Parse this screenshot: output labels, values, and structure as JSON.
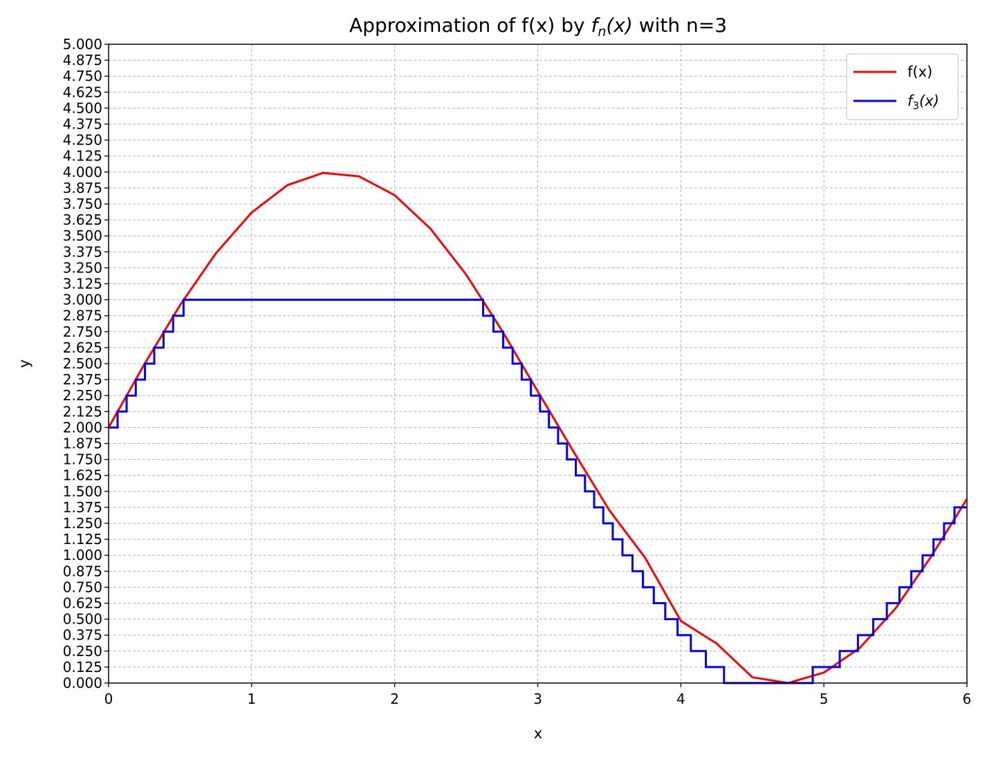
{
  "chart_data": {
    "type": "line",
    "title_prefix": "Approximation of f(x) by ",
    "title_math_f": "f",
    "title_math_sub": "n",
    "title_math_arg": "(x)",
    "title_suffix": " with n=3",
    "xlabel": "x",
    "ylabel": "y",
    "xlim": [
      0,
      6
    ],
    "ylim": [
      0,
      5
    ],
    "xticks": [
      0,
      1,
      2,
      3,
      4,
      5,
      6
    ],
    "xtick_labels": [
      "0",
      "1",
      "2",
      "3",
      "4",
      "5",
      "6"
    ],
    "yticks": [
      0,
      0.125,
      0.25,
      0.375,
      0.5,
      0.625,
      0.75,
      0.875,
      1,
      1.125,
      1.25,
      1.375,
      1.5,
      1.625,
      1.75,
      1.875,
      2,
      2.125,
      2.25,
      2.375,
      2.5,
      2.625,
      2.75,
      2.875,
      3,
      3.125,
      3.25,
      3.375,
      3.5,
      3.625,
      3.75,
      3.875,
      4,
      4.125,
      4.25,
      4.375,
      4.5,
      4.625,
      4.75,
      4.875,
      5
    ],
    "ytick_labels": [
      "0.000",
      "0.125",
      "0.250",
      "0.375",
      "0.500",
      "0.625",
      "0.750",
      "0.875",
      "1.000",
      "1.125",
      "1.250",
      "1.375",
      "1.500",
      "1.625",
      "1.750",
      "1.875",
      "2.000",
      "2.125",
      "2.250",
      "2.375",
      "2.500",
      "2.625",
      "2.750",
      "2.875",
      "3.000",
      "3.125",
      "3.250",
      "3.375",
      "3.500",
      "3.625",
      "3.750",
      "3.875",
      "4.000",
      "4.125",
      "4.250",
      "4.375",
      "4.500",
      "4.625",
      "4.750",
      "4.875",
      "5.000"
    ],
    "grid": true,
    "legend_position": "top-right",
    "series": [
      {
        "name": "f(x)",
        "color": "#ff0000",
        "x": [
          0,
          0.25,
          0.5,
          0.75,
          1,
          1.25,
          1.5,
          1.75,
          2,
          2.25,
          2.5,
          2.75,
          3,
          3.25,
          3.5,
          3.75,
          4,
          4.25,
          4.5,
          4.75,
          5,
          5.25,
          5.5,
          5.75,
          6
        ],
        "y": [
          2.0,
          2.495,
          2.959,
          3.364,
          3.683,
          3.897,
          3.993,
          3.966,
          3.818,
          3.556,
          3.196,
          2.758,
          2.282,
          1.811,
          1.352,
          0.981,
          0.486,
          0.309,
          0.045,
          0.0,
          0.082,
          0.274,
          0.583,
          0.991,
          1.441
        ]
      },
      {
        "name_math_f": "f",
        "name_math_sub": "3",
        "name_math_arg": "(x)",
        "color": "#0000ff",
        "style": "step",
        "description": "floor(8*f(x))/8 capped at 3",
        "x": [
          0,
          0.063,
          0.126,
          0.19,
          0.254,
          0.319,
          0.384,
          0.451,
          0.524,
          2.618,
          2.69,
          2.758,
          2.824,
          2.888,
          2.952,
          3.016,
          3.078,
          3.142,
          3.204,
          3.266,
          3.33,
          3.394,
          3.458,
          3.524,
          3.592,
          3.662,
          3.735,
          3.811,
          3.891,
          3.977,
          4.07,
          4.175,
          4.302,
          4.493,
          4.922,
          5.111,
          5.238,
          5.345,
          5.44,
          5.528,
          5.611,
          5.69,
          5.766,
          5.84,
          5.913,
          5.98,
          6
        ],
        "y": [
          2.0,
          2.125,
          2.25,
          2.375,
          2.5,
          2.625,
          2.75,
          2.875,
          3.0,
          2.875,
          2.75,
          2.625,
          2.5,
          2.375,
          2.25,
          2.125,
          2.0,
          1.875,
          1.75,
          1.625,
          1.5,
          1.375,
          1.25,
          1.125,
          1.0,
          0.875,
          0.75,
          0.625,
          0.5,
          0.375,
          0.25,
          0.125,
          0.0,
          0.0,
          0.125,
          0.25,
          0.375,
          0.5,
          0.625,
          0.75,
          0.875,
          1.0,
          1.125,
          1.25,
          1.375,
          1.375,
          1.375
        ]
      }
    ]
  }
}
